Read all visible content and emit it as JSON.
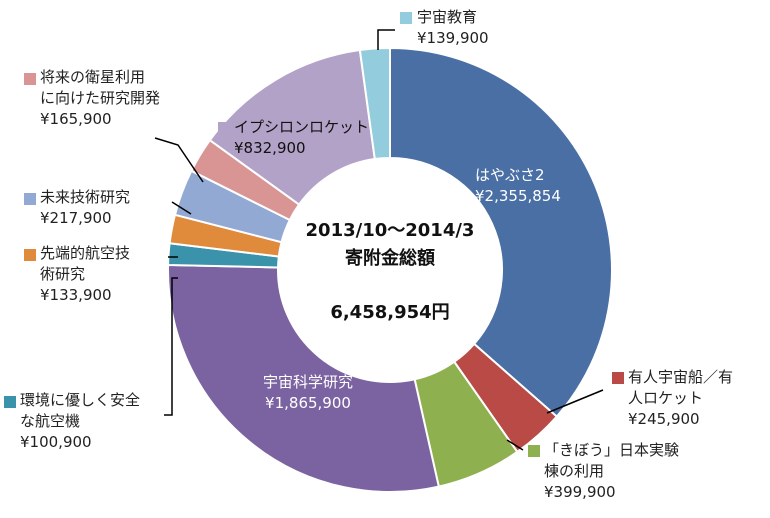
{
  "chart_data": {
    "type": "pie",
    "center": {
      "line1": "2013/10〜2014/3",
      "line2": "寄附金総額",
      "total": "6,458,954円"
    },
    "slices": [
      {
        "name": "はやぶさ2",
        "label_lines": [
          "はやぶさ2"
        ],
        "value_label": "¥2,355,854",
        "value": 2355854,
        "color": "#4a6fa5"
      },
      {
        "name": "有人宇宙船／有人ロケット",
        "label_lines": [
          "有人宇宙船／有",
          "人ロケット"
        ],
        "value_label": "¥245,900",
        "value": 245900,
        "color": "#b94a45"
      },
      {
        "name": "「きぼう」日本実験棟の利用",
        "label_lines": [
          "「きぼう」日本実験",
          "棟の利用"
        ],
        "value_label": "¥399,900",
        "value": 399900,
        "color": "#8fb04f"
      },
      {
        "name": "宇宙科学研究",
        "label_lines": [
          "宇宙科学研究"
        ],
        "value_label": "¥1,865,900",
        "value": 1865900,
        "color": "#7b63a1"
      },
      {
        "name": "環境に優しく安全な航空機",
        "label_lines": [
          "環境に優しく安全",
          "な航空機"
        ],
        "value_label": "¥100,900",
        "value": 100900,
        "color": "#3a93aa"
      },
      {
        "name": "先端的航空技術研究",
        "label_lines": [
          "先端的航空技",
          "術研究"
        ],
        "value_label": "¥133,900",
        "value": 133900,
        "color": "#e08a3c"
      },
      {
        "name": "未来技術研究",
        "label_lines": [
          "未来技術研究"
        ],
        "value_label": "¥217,900",
        "value": 217900,
        "color": "#92aad3"
      },
      {
        "name": "将来の衛星利用に向けた研究開発",
        "label_lines": [
          "将来の衛星利用",
          "に向けた研究開発"
        ],
        "value_label": "¥165,900",
        "value": 165900,
        "color": "#d99594"
      },
      {
        "name": "イプシロンロケット",
        "label_lines": [
          "イプシロンロケット"
        ],
        "value_label": "¥832,900",
        "value": 832900,
        "color": "#b2a2c7"
      },
      {
        "name": "宇宙教育",
        "label_lines": [
          "宇宙教育"
        ],
        "value_label": "¥139,900",
        "value": 139900,
        "color": "#93cddd"
      }
    ]
  }
}
